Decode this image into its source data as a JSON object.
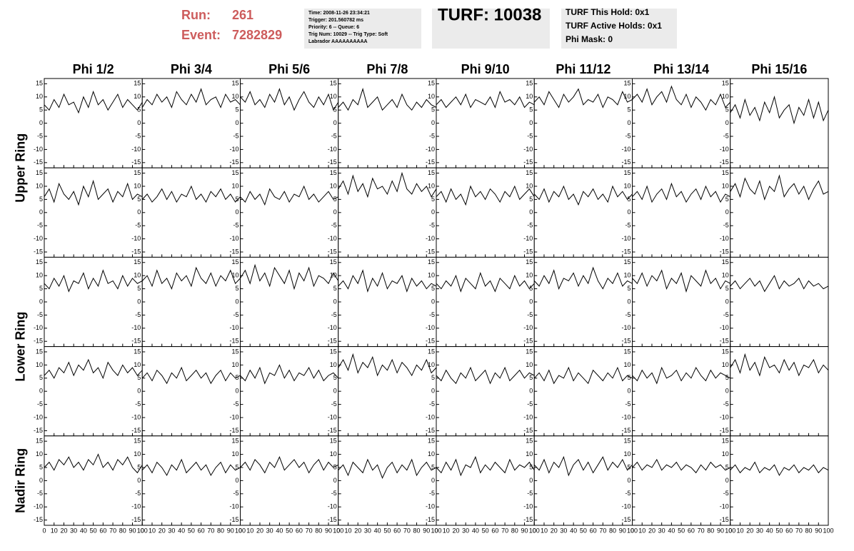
{
  "header": {
    "run_label": "Run:",
    "run": "261",
    "event_label": "Event:",
    "event": "7282829",
    "info": [
      "Time: 2008-11-26 23:34:21",
      "Trigger: 201.560782 ms",
      "Priority: 6 -- Queue: 6",
      "Trig Num: 10029 -- Trig Type: Soft",
      "Labrador AAAAAAAAAA"
    ],
    "turf": "TURF: 10038",
    "turf_info": [
      "TURF This Hold: 0x1",
      "TURF Active Holds: 0x1",
      "Phi Mask: 0"
    ]
  },
  "column_labels": [
    "Phi 1/2",
    "Phi 3/4",
    "Phi 5/6",
    "Phi 7/8",
    "Phi 9/10",
    "Phi 11/12",
    "Phi 13/14",
    "Phi 15/16"
  ],
  "row_labels": [
    "Upper Ring",
    "Lower Ring",
    "Nadir Ring"
  ],
  "waveforms": {
    "type": "line",
    "xlim": [
      0,
      100
    ],
    "xticks": [
      0,
      10,
      20,
      30,
      40,
      50,
      60,
      70,
      80,
      90,
      100
    ],
    "ylim": [
      -17,
      17
    ],
    "yticks": [
      -15,
      -10,
      -5,
      0,
      5,
      10,
      15
    ],
    "x": [
      0,
      5,
      10,
      15,
      20,
      25,
      30,
      35,
      40,
      45,
      50,
      55,
      60,
      65,
      70,
      75,
      80,
      85,
      90,
      95,
      100
    ],
    "traces": [
      [
        [
          7,
          5,
          9,
          6,
          11,
          7,
          8,
          4,
          10,
          6,
          12,
          7,
          9,
          5,
          8,
          11,
          6,
          9,
          7,
          5,
          8
        ],
        [
          6,
          9,
          7,
          11,
          8,
          10,
          6,
          12,
          9,
          7,
          11,
          8,
          13,
          7,
          9,
          10,
          6,
          11,
          8,
          9,
          7
        ],
        [
          10,
          8,
          12,
          7,
          9,
          6,
          11,
          8,
          13,
          7,
          10,
          5,
          9,
          12,
          8,
          6,
          10,
          7,
          11,
          5,
          8
        ],
        [
          6,
          8,
          5,
          9,
          7,
          13,
          6,
          8,
          10,
          5,
          7,
          9,
          6,
          11,
          7,
          5,
          8,
          6,
          9,
          7,
          6
        ],
        [
          7,
          9,
          6,
          8,
          10,
          7,
          11,
          6,
          9,
          8,
          7,
          10,
          6,
          12,
          8,
          9,
          7,
          10,
          6,
          8,
          7
        ],
        [
          8,
          10,
          7,
          12,
          9,
          6,
          11,
          8,
          10,
          13,
          7,
          9,
          8,
          11,
          6,
          10,
          9,
          7,
          12,
          8,
          9
        ],
        [
          9,
          11,
          8,
          13,
          7,
          10,
          12,
          8,
          14,
          9,
          7,
          11,
          6,
          10,
          8,
          5,
          9,
          7,
          11,
          6,
          8
        ],
        [
          4,
          7,
          2,
          9,
          3,
          6,
          1,
          8,
          4,
          10,
          2,
          5,
          7,
          0,
          6,
          3,
          9,
          2,
          8,
          1,
          5
        ]
      ],
      [
        [
          6,
          9,
          4,
          11,
          7,
          5,
          8,
          3,
          10,
          6,
          12,
          5,
          7,
          9,
          4,
          8,
          6,
          11,
          5,
          7,
          6
        ],
        [
          5,
          7,
          4,
          6,
          9,
          5,
          8,
          4,
          7,
          6,
          10,
          5,
          7,
          4,
          8,
          6,
          9,
          5,
          7,
          4,
          6
        ],
        [
          6,
          4,
          8,
          5,
          7,
          3,
          9,
          6,
          5,
          8,
          4,
          7,
          6,
          10,
          5,
          7,
          4,
          6,
          8,
          5,
          6
        ],
        [
          9,
          12,
          7,
          14,
          8,
          11,
          6,
          13,
          9,
          10,
          7,
          12,
          8,
          15,
          9,
          7,
          11,
          8,
          10,
          6,
          9
        ],
        [
          6,
          8,
          4,
          9,
          5,
          7,
          3,
          10,
          6,
          8,
          5,
          9,
          7,
          4,
          8,
          6,
          10,
          5,
          7,
          9,
          6
        ],
        [
          7,
          5,
          9,
          4,
          8,
          6,
          10,
          5,
          7,
          3,
          8,
          6,
          9,
          5,
          7,
          4,
          10,
          6,
          8,
          5,
          7
        ],
        [
          6,
          8,
          5,
          10,
          4,
          7,
          9,
          5,
          11,
          6,
          8,
          4,
          7,
          9,
          5,
          10,
          6,
          8,
          4,
          7,
          6
        ],
        [
          8,
          11,
          6,
          13,
          9,
          7,
          12,
          5,
          10,
          8,
          14,
          6,
          9,
          11,
          7,
          10,
          5,
          9,
          12,
          7,
          8
        ]
      ],
      [
        [
          7,
          5,
          9,
          6,
          10,
          4,
          8,
          7,
          11,
          5,
          9,
          6,
          12,
          7,
          8,
          5,
          10,
          6,
          9,
          7,
          8
        ],
        [
          8,
          10,
          6,
          12,
          7,
          9,
          5,
          11,
          8,
          10,
          6,
          13,
          9,
          7,
          11,
          6,
          10,
          8,
          12,
          7,
          9
        ],
        [
          9,
          12,
          7,
          14,
          8,
          11,
          6,
          13,
          10,
          7,
          12,
          5,
          11,
          8,
          13,
          6,
          10,
          9,
          7,
          11,
          8
        ],
        [
          6,
          8,
          5,
          10,
          7,
          12,
          4,
          9,
          6,
          11,
          5,
          8,
          7,
          10,
          4,
          9,
          6,
          8,
          5,
          7,
          6
        ],
        [
          7,
          5,
          8,
          6,
          10,
          4,
          9,
          7,
          5,
          11,
          6,
          8,
          4,
          9,
          7,
          5,
          10,
          6,
          8,
          5,
          7
        ],
        [
          8,
          6,
          10,
          7,
          12,
          5,
          9,
          8,
          11,
          6,
          10,
          7,
          13,
          8,
          5,
          9,
          7,
          11,
          6,
          8,
          7
        ],
        [
          9,
          7,
          11,
          6,
          10,
          8,
          12,
          5,
          9,
          7,
          11,
          4,
          10,
          8,
          6,
          12,
          7,
          9,
          5,
          8,
          7
        ],
        [
          6,
          8,
          5,
          7,
          9,
          6,
          8,
          4,
          7,
          10,
          5,
          8,
          6,
          7,
          9,
          5,
          8,
          6,
          7,
          5,
          6
        ]
      ],
      [
        [
          6,
          8,
          5,
          9,
          7,
          11,
          6,
          10,
          8,
          12,
          7,
          9,
          5,
          11,
          8,
          6,
          10,
          7,
          9,
          6,
          8
        ],
        [
          5,
          7,
          4,
          8,
          6,
          3,
          7,
          5,
          9,
          4,
          6,
          8,
          5,
          7,
          3,
          6,
          8,
          4,
          7,
          5,
          6
        ],
        [
          6,
          4,
          8,
          5,
          9,
          3,
          7,
          6,
          10,
          5,
          8,
          4,
          7,
          6,
          9,
          5,
          8,
          4,
          6,
          7,
          5
        ],
        [
          9,
          12,
          8,
          14,
          7,
          11,
          9,
          13,
          6,
          10,
          8,
          12,
          7,
          11,
          9,
          6,
          10,
          8,
          12,
          7,
          9
        ],
        [
          6,
          4,
          8,
          5,
          3,
          7,
          5,
          9,
          4,
          6,
          8,
          3,
          7,
          5,
          9,
          4,
          6,
          8,
          5,
          7,
          6
        ],
        [
          5,
          7,
          4,
          8,
          3,
          6,
          5,
          9,
          4,
          7,
          5,
          3,
          8,
          6,
          4,
          7,
          5,
          9,
          4,
          6,
          5
        ],
        [
          6,
          4,
          8,
          5,
          7,
          3,
          9,
          5,
          6,
          8,
          4,
          7,
          5,
          9,
          6,
          4,
          8,
          5,
          7,
          6,
          5
        ],
        [
          9,
          12,
          7,
          14,
          8,
          11,
          6,
          13,
          9,
          10,
          7,
          12,
          8,
          11,
          6,
          10,
          9,
          12,
          7,
          10,
          8
        ]
      ],
      [
        [
          5,
          7,
          4,
          8,
          6,
          9,
          5,
          7,
          4,
          8,
          6,
          10,
          5,
          7,
          4,
          8,
          6,
          9,
          5,
          3,
          6
        ],
        [
          4,
          6,
          3,
          7,
          5,
          2,
          6,
          4,
          8,
          3,
          5,
          7,
          4,
          6,
          2,
          5,
          7,
          3,
          6,
          4,
          5
        ],
        [
          5,
          7,
          4,
          8,
          6,
          3,
          7,
          5,
          9,
          4,
          6,
          8,
          5,
          7,
          3,
          6,
          8,
          4,
          7,
          5,
          6
        ],
        [
          4,
          6,
          2,
          7,
          5,
          3,
          8,
          4,
          6,
          1,
          5,
          7,
          3,
          6,
          4,
          8,
          2,
          5,
          7,
          4,
          5
        ],
        [
          5,
          3,
          7,
          4,
          8,
          2,
          6,
          5,
          9,
          3,
          6,
          4,
          7,
          5,
          3,
          8,
          4,
          6,
          5,
          7,
          4
        ],
        [
          6,
          4,
          8,
          3,
          7,
          5,
          9,
          2,
          6,
          8,
          4,
          7,
          3,
          6,
          9,
          4,
          7,
          5,
          8,
          4,
          6
        ],
        [
          5,
          7,
          4,
          6,
          5,
          8,
          4,
          6,
          5,
          7,
          4,
          6,
          5,
          3,
          6,
          4,
          7,
          5,
          6,
          4,
          5
        ],
        [
          4,
          6,
          3,
          5,
          4,
          7,
          3,
          5,
          4,
          6,
          2,
          5,
          4,
          6,
          3,
          5,
          4,
          6,
          3,
          5,
          4
        ]
      ]
    ]
  }
}
